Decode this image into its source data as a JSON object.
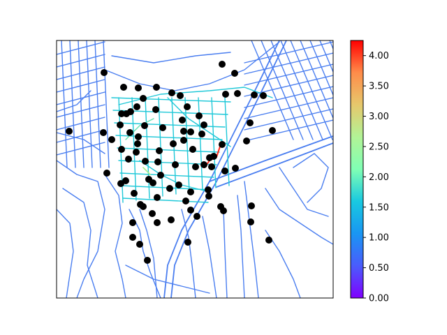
{
  "chart_data": {
    "type": "scatter",
    "title": "",
    "xlabel": "",
    "ylabel": "",
    "grid": false,
    "plot_type_note": "street network colored by edge value with node markers",
    "colorbar": {
      "colormap": "rainbow",
      "range": [
        0.0,
        4.25
      ],
      "ticks": [
        "0.00",
        "0.50",
        "1.00",
        "1.50",
        "2.00",
        "2.50",
        "3.00",
        "3.50",
        "4.00"
      ],
      "tick_values": [
        0.0,
        0.5,
        1.0,
        1.5,
        2.0,
        2.5,
        3.0,
        3.5,
        4.0
      ]
    },
    "colors": {
      "low_edges": "#4a7ef0",
      "mid_edges": "#1ec8d8",
      "high_edge": "#ff2a1a",
      "nodes": "#000000"
    }
  }
}
